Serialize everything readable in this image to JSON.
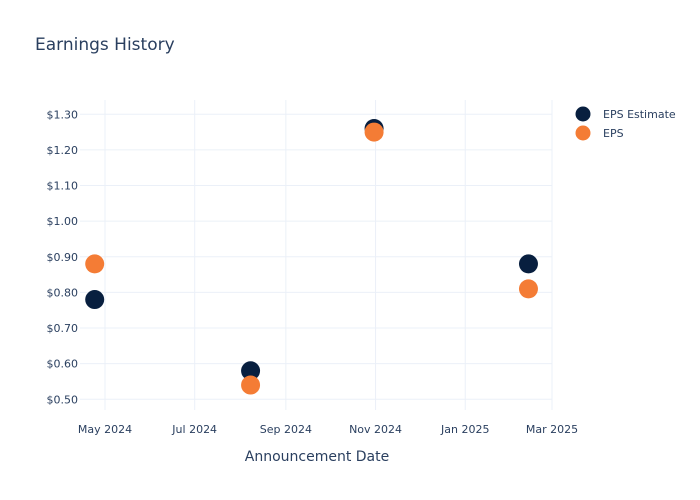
{
  "chart_data": {
    "type": "scatter",
    "title": "Earnings History",
    "xlabel": "Announcement Date",
    "ylabel": "",
    "x_ticks": [
      "May 2024",
      "Jul 2024",
      "Sep 2024",
      "Nov 2024",
      "Jan 2025",
      "Mar 2025"
    ],
    "x_tick_dates": [
      "2024-05-01",
      "2024-07-01",
      "2024-09-01",
      "2024-11-01",
      "2025-01-01",
      "2025-03-01"
    ],
    "xlim": [
      "2024-04-14",
      "2025-03-01"
    ],
    "y_ticks": [
      "$0.50",
      "$0.60",
      "$0.70",
      "$0.80",
      "$0.90",
      "$1.00",
      "$1.10",
      "$1.20",
      "$1.30"
    ],
    "y_tick_values": [
      0.5,
      0.6,
      0.7,
      0.8,
      0.9,
      1.0,
      1.1,
      1.2,
      1.3
    ],
    "ylim": [
      0.47,
      1.34
    ],
    "grid": true,
    "legend_position": "top-right",
    "series": [
      {
        "name": "EPS Estimate",
        "color": "#081f3f",
        "points": [
          {
            "x": "2024-04-24",
            "y": 0.78
          },
          {
            "x": "2024-08-08",
            "y": 0.58
          },
          {
            "x": "2024-10-31",
            "y": 1.26
          },
          {
            "x": "2025-02-13",
            "y": 0.88
          }
        ]
      },
      {
        "name": "EPS",
        "color": "#f47c35",
        "points": [
          {
            "x": "2024-04-24",
            "y": 0.88
          },
          {
            "x": "2024-08-08",
            "y": 0.54
          },
          {
            "x": "2024-10-31",
            "y": 1.25
          },
          {
            "x": "2025-02-13",
            "y": 0.81
          }
        ]
      }
    ]
  }
}
